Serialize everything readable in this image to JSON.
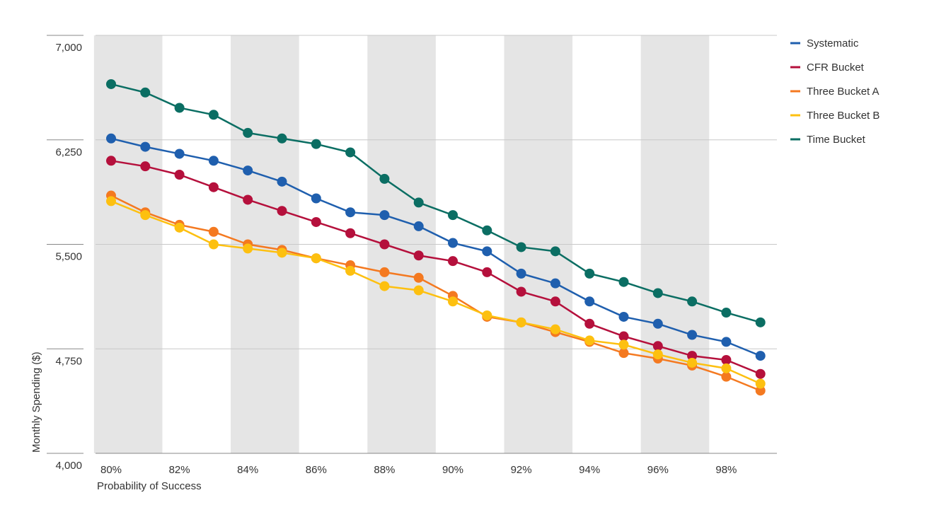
{
  "chart_data": {
    "type": "line",
    "xlabel": "Probability of Success",
    "ylabel": "Monthly Spending ($)",
    "ylim": [
      4000,
      7000
    ],
    "xlim": [
      80,
      99
    ],
    "y_ticks": [
      "4,000",
      "4,750",
      "5,500",
      "6,250",
      "7,000"
    ],
    "y_tick_values": [
      4000,
      4750,
      5500,
      6250,
      7000
    ],
    "x_ticks": [
      "80%",
      "82%",
      "84%",
      "86%",
      "88%",
      "90%",
      "92%",
      "94%",
      "96%",
      "98%"
    ],
    "x_tick_values": [
      80,
      82,
      84,
      86,
      88,
      90,
      92,
      94,
      96,
      98
    ],
    "grid": "horizontal",
    "shaded_bands": [
      [
        80,
        81
      ],
      [
        84,
        85
      ],
      [
        88,
        89
      ],
      [
        92,
        93
      ],
      [
        96,
        97
      ]
    ],
    "legend_position": "right",
    "x": [
      80,
      81,
      82,
      83,
      84,
      85,
      86,
      87,
      88,
      89,
      90,
      91,
      92,
      93,
      94,
      95,
      96,
      97,
      98,
      99
    ],
    "series": [
      {
        "name": "Systematic",
        "color": "#1f5fae",
        "values": [
          6260,
          6200,
          6150,
          6100,
          6030,
          5950,
          5830,
          5730,
          5710,
          5630,
          5510,
          5450,
          5290,
          5220,
          5090,
          4980,
          4930,
          4850,
          4800,
          4700
        ]
      },
      {
        "name": "CFR Bucket",
        "color": "#b5103c",
        "values": [
          6100,
          6060,
          6000,
          5910,
          5820,
          5740,
          5660,
          5580,
          5500,
          5420,
          5380,
          5300,
          5160,
          5090,
          4930,
          4840,
          4770,
          4700,
          4670,
          4570
        ]
      },
      {
        "name": "Three Bucket A",
        "color": "#f47920",
        "values": [
          5850,
          5730,
          5640,
          5590,
          5500,
          5460,
          5400,
          5350,
          5300,
          5260,
          5130,
          4980,
          4940,
          4870,
          4800,
          4720,
          4680,
          4630,
          4550,
          4450
        ]
      },
      {
        "name": "Three Bucket B",
        "color": "#fdc010",
        "values": [
          5810,
          5710,
          5620,
          5500,
          5470,
          5440,
          5400,
          5310,
          5200,
          5170,
          5090,
          4990,
          4940,
          4890,
          4810,
          4780,
          4710,
          4650,
          4610,
          4500
        ]
      },
      {
        "name": "Time Bucket",
        "color": "#0b6e63",
        "values": [
          6650,
          6590,
          6480,
          6430,
          6300,
          6260,
          6220,
          6160,
          5970,
          5800,
          5710,
          5600,
          5480,
          5450,
          5290,
          5230,
          5150,
          5090,
          5010,
          4940
        ]
      }
    ]
  }
}
